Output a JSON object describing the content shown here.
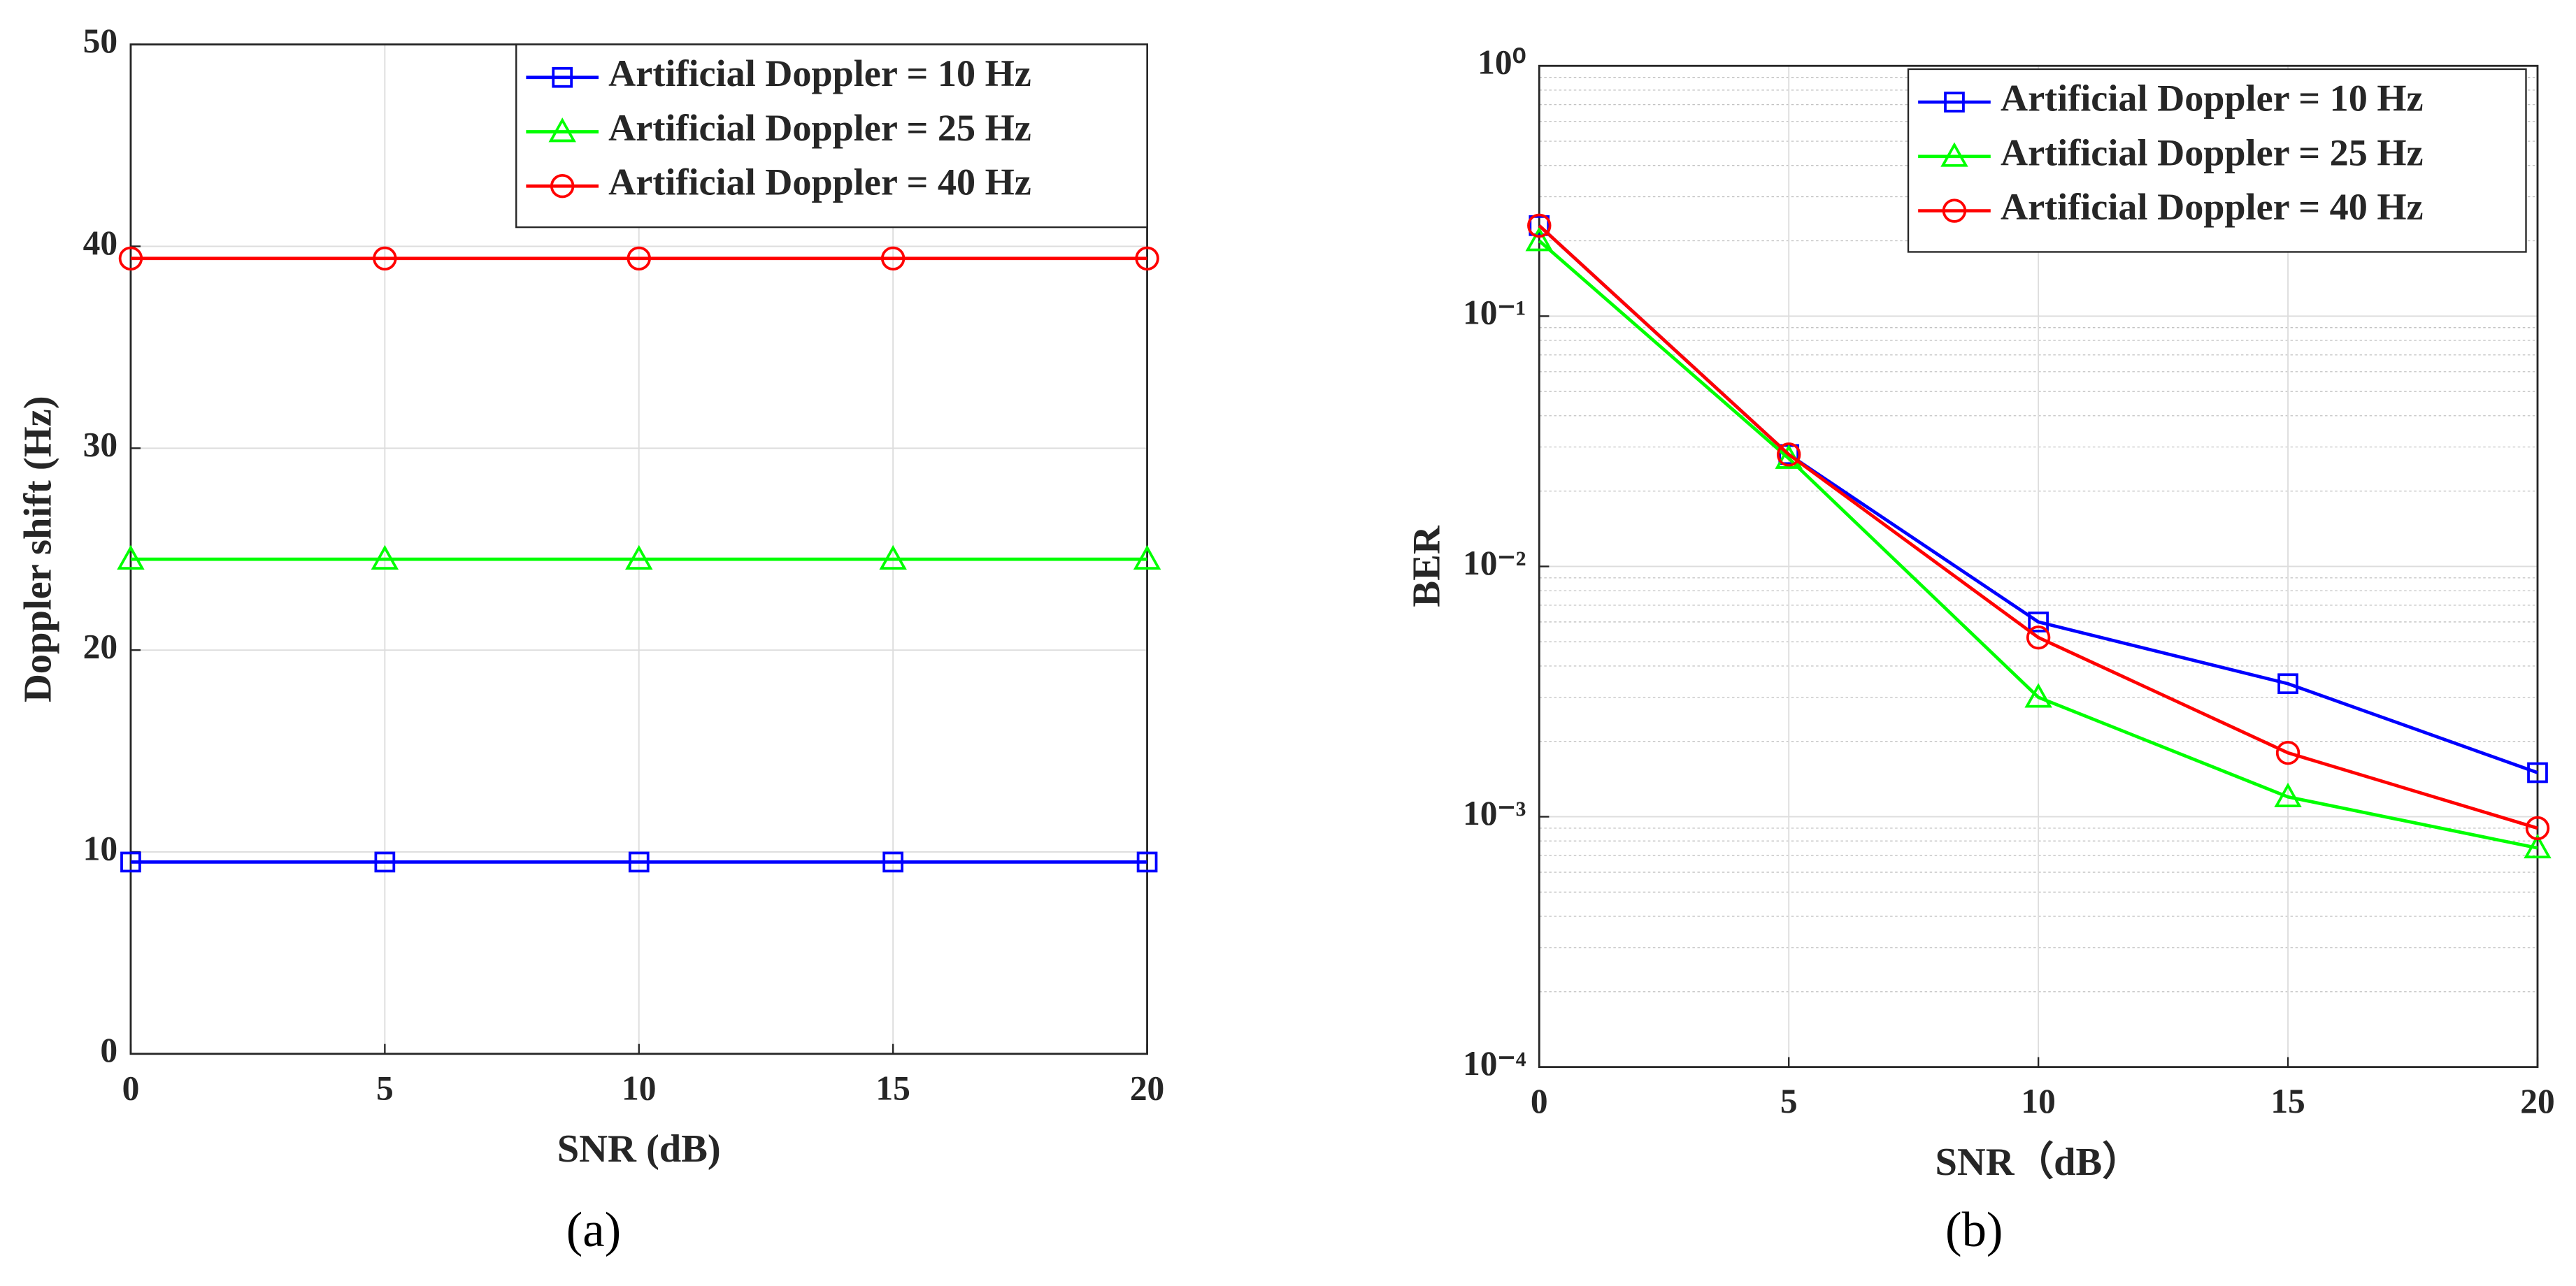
{
  "chart_data": [
    {
      "type": "line",
      "caption": "(a)",
      "xlabel": "SNR (dB)",
      "ylabel": "Doppler shift (Hz)",
      "x": [
        0,
        5,
        10,
        15,
        20
      ],
      "xlim": [
        0,
        20
      ],
      "xticks": [
        0,
        5,
        10,
        15,
        20
      ],
      "ylim": [
        0,
        50
      ],
      "yticks": [
        0,
        10,
        20,
        30,
        40,
        50
      ],
      "grid": true,
      "legend": "upper right",
      "series": [
        {
          "name": "Artificial Doppler = 10 Hz",
          "color": "#0000ff",
          "marker": "square",
          "values": [
            9.5,
            9.5,
            9.5,
            9.5,
            9.5
          ]
        },
        {
          "name": "Artificial Doppler = 25 Hz",
          "color": "#00ff00",
          "marker": "triangle",
          "values": [
            24.5,
            24.5,
            24.5,
            24.5,
            24.5
          ]
        },
        {
          "name": "Artificial Doppler = 40 Hz",
          "color": "#ff0000",
          "marker": "circle",
          "values": [
            39.4,
            39.4,
            39.4,
            39.4,
            39.4
          ]
        }
      ]
    },
    {
      "type": "line",
      "caption": "(b)",
      "xlabel": "SNR（dB）",
      "ylabel": "BER",
      "x": [
        0,
        5,
        10,
        15,
        20
      ],
      "xlim": [
        0,
        20
      ],
      "xticks": [
        0,
        5,
        10,
        15,
        20
      ],
      "ylog": true,
      "ylim": [
        0.0001,
        1
      ],
      "yticks": [
        {
          "value": 0.0001,
          "label": "10⁻⁴"
        },
        {
          "value": 0.001,
          "label": "10⁻³"
        },
        {
          "value": 0.01,
          "label": "10⁻²"
        },
        {
          "value": 0.1,
          "label": "10⁻¹"
        },
        {
          "value": 1,
          "label": "10⁰"
        }
      ],
      "grid": true,
      "minor_grid": true,
      "legend": "upper right",
      "series": [
        {
          "name": "Artificial Doppler = 10 Hz",
          "color": "#0000ff",
          "marker": "square",
          "values": [
            0.23,
            0.028,
            0.006,
            0.0034,
            0.0015
          ]
        },
        {
          "name": "Artificial Doppler = 25 Hz",
          "color": "#00ff00",
          "marker": "triangle",
          "values": [
            0.2,
            0.027,
            0.003,
            0.0012,
            0.00075
          ]
        },
        {
          "name": "Artificial Doppler = 40 Hz",
          "color": "#ff0000",
          "marker": "circle",
          "values": [
            0.23,
            0.028,
            0.0052,
            0.0018,
            0.0009
          ]
        }
      ]
    }
  ]
}
